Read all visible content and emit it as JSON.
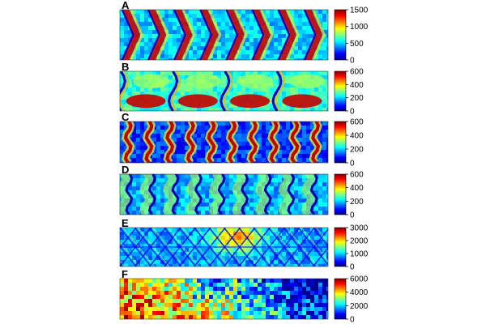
{
  "colormap": [
    "#00008f",
    "#0000ff",
    "#0080ff",
    "#00ffff",
    "#80ff80",
    "#ffff00",
    "#ff8000",
    "#ff0000",
    "#800000"
  ],
  "chart_data": [
    {
      "type": "heatmap",
      "panel": "A",
      "pattern": "chevron",
      "colorbar": {
        "ticks": [
          0,
          500,
          1000,
          1500
        ],
        "range": [
          0,
          1500
        ]
      },
      "background_level": 0.33,
      "features": {
        "count": 8,
        "description": "bright V-shaped chevron bands"
      }
    },
    {
      "type": "heatmap",
      "panel": "B",
      "pattern": "wide-wave",
      "colorbar": {
        "ticks": [
          0,
          200,
          400,
          600
        ],
        "range": [
          0,
          600
        ]
      },
      "background_level": 0.42,
      "features": {
        "count": 4,
        "description": "wavy vertical grooves with red lobes"
      }
    },
    {
      "type": "heatmap",
      "panel": "C",
      "pattern": "vertical-wave",
      "colorbar": {
        "ticks": [
          0,
          200,
          400,
          600
        ],
        "range": [
          0,
          600
        ]
      },
      "background_level": 0.18,
      "features": {
        "count": 10,
        "description": "wavy vertical bright stripes"
      }
    },
    {
      "type": "heatmap",
      "panel": "D",
      "pattern": "vertical-wave",
      "colorbar": {
        "ticks": [
          0,
          200,
          400,
          600
        ],
        "range": [
          0,
          600
        ]
      },
      "background_level": 0.3,
      "features": {
        "count": 9,
        "description": "wavy dark grooves with cyan bands"
      }
    },
    {
      "type": "heatmap",
      "panel": "E",
      "pattern": "diagonal-lattice",
      "colorbar": {
        "ticks": [
          0,
          1000,
          2000,
          3000
        ],
        "range": [
          0,
          3000
        ]
      },
      "background_level": 0.28,
      "features": {
        "count": 14,
        "description": "diagonal crosshatch with hot region near center"
      }
    },
    {
      "type": "heatmap",
      "panel": "F",
      "pattern": "speckle",
      "colorbar": {
        "ticks": [
          0,
          2000,
          4000,
          6000
        ],
        "range": [
          0,
          6000
        ]
      },
      "background_level": 0.25,
      "features": {
        "count": 0,
        "description": "speckled field, hot on left fading to cool on right"
      }
    }
  ]
}
